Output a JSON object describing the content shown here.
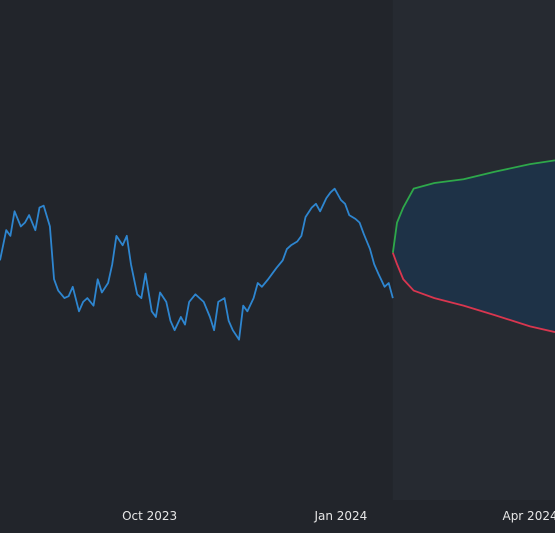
{
  "chart_data": {
    "type": "line",
    "title": "",
    "xlabel": "",
    "ylabel": "",
    "grid": false,
    "x_ticks": [
      {
        "date": "2023-10-01",
        "label": "Oct 2023"
      },
      {
        "date": "2024-01-01",
        "label": "Jan 2024"
      },
      {
        "date": "2024-04-01",
        "label": "Apr 2024"
      }
    ],
    "x_range": [
      "2023-07-21",
      "2024-04-13"
    ],
    "y_range": [
      -135,
      130
    ],
    "colors": {
      "background": "#22252b",
      "history": "#2e86d0",
      "upper": "#2ea84a",
      "lower": "#d9364f",
      "band": "#1e3247",
      "ticks": "#e6e6e6"
    },
    "series": [
      {
        "role": "history",
        "x": [
          "2023-07-21",
          "2023-07-24",
          "2023-07-26",
          "2023-07-28",
          "2023-07-31",
          "2023-08-02",
          "2023-08-04",
          "2023-08-07",
          "2023-08-09",
          "2023-08-11",
          "2023-08-14",
          "2023-08-16",
          "2023-08-18",
          "2023-08-21",
          "2023-08-23",
          "2023-08-25",
          "2023-08-28",
          "2023-08-30",
          "2023-09-01",
          "2023-09-04",
          "2023-09-06",
          "2023-09-08",
          "2023-09-11",
          "2023-09-13",
          "2023-09-15",
          "2023-09-18",
          "2023-09-20",
          "2023-09-22",
          "2023-09-25",
          "2023-09-27",
          "2023-09-29",
          "2023-10-02",
          "2023-10-04",
          "2023-10-06",
          "2023-10-09",
          "2023-10-11",
          "2023-10-13",
          "2023-10-16",
          "2023-10-18",
          "2023-10-20",
          "2023-10-23",
          "2023-10-25",
          "2023-10-27",
          "2023-10-30",
          "2023-11-01",
          "2023-11-03",
          "2023-11-06",
          "2023-11-08",
          "2023-11-10",
          "2023-11-13",
          "2023-11-15",
          "2023-11-17",
          "2023-11-20",
          "2023-11-22",
          "2023-11-24",
          "2023-11-27",
          "2023-11-29",
          "2023-12-01",
          "2023-12-04",
          "2023-12-06",
          "2023-12-08",
          "2023-12-11",
          "2023-12-13",
          "2023-12-15",
          "2023-12-18",
          "2023-12-20",
          "2023-12-22",
          "2023-12-25",
          "2023-12-27",
          "2023-12-29",
          "2024-01-01",
          "2024-01-03",
          "2024-01-05",
          "2024-01-08",
          "2024-01-10",
          "2024-01-12",
          "2024-01-15",
          "2024-01-17",
          "2024-01-19",
          "2024-01-22",
          "2024-01-24",
          "2024-01-26"
        ],
        "y": [
          -8,
          8,
          5,
          18,
          10,
          12,
          16,
          8,
          20,
          21,
          10,
          -18,
          -24,
          -28,
          -27,
          -22,
          -35,
          -30,
          -28,
          -32,
          -18,
          -25,
          -20,
          -10,
          5,
          0,
          5,
          -10,
          -26,
          -28,
          -15,
          -35,
          -38,
          -25,
          -30,
          -40,
          -45,
          -38,
          -42,
          -30,
          -26,
          -28,
          -30,
          -38,
          -45,
          -30,
          -28,
          -40,
          -45,
          -50,
          -32,
          -35,
          -28,
          -20,
          -22,
          -18,
          -15,
          -12,
          -8,
          -2,
          0,
          2,
          5,
          15,
          20,
          22,
          18,
          25,
          28,
          30,
          24,
          22,
          16,
          14,
          12,
          6,
          -2,
          -10,
          -15,
          -22,
          -20,
          -28
        ]
      },
      {
        "role": "forecast-upper",
        "x": [
          "2024-01-26",
          "2024-01-28",
          "2024-01-31",
          "2024-02-05",
          "2024-02-15",
          "2024-02-29",
          "2024-03-15",
          "2024-04-01",
          "2024-04-13"
        ],
        "y": [
          -4,
          12,
          20,
          30,
          33,
          35,
          39,
          43,
          45
        ]
      },
      {
        "role": "forecast-lower",
        "x": [
          "2024-01-26",
          "2024-01-28",
          "2024-01-31",
          "2024-02-05",
          "2024-02-15",
          "2024-02-29",
          "2024-03-15",
          "2024-04-01",
          "2024-04-13"
        ],
        "y": [
          -4,
          -10,
          -18,
          -24,
          -28,
          -32,
          -37,
          -43,
          -46
        ]
      }
    ]
  }
}
